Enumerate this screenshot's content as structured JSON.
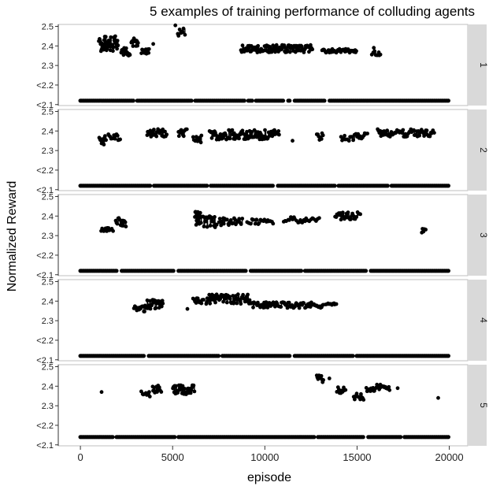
{
  "chart_data": {
    "type": "scatter",
    "title": "5 examples of training performance of colluding agents",
    "xlabel": "episode",
    "ylabel": "Normalized Reward",
    "xlim": [
      -1200,
      21000
    ],
    "ylim": [
      2.095,
      2.51
    ],
    "x_ticks": [
      0,
      5000,
      10000,
      15000,
      20000
    ],
    "y_ticks": [
      {
        "value": 2.1,
        "label": "<2.1"
      },
      {
        "value": 2.2,
        "label": "<2.2"
      },
      {
        "value": 2.3,
        "label": "2.3"
      },
      {
        "value": 2.4,
        "label": "2.4"
      },
      {
        "value": 2.5,
        "label": "2.5"
      }
    ],
    "grid": false,
    "legend": "none",
    "point_color": "#000000",
    "strip_color": "#d9d9d9",
    "panels": [
      {
        "label": "1",
        "baseline": {
          "value": 2.12,
          "ranges": [
            [
              0,
              20000
            ]
          ],
          "gaps": [
            [
              2900,
              3050
            ],
            [
              6050,
              6200
            ],
            [
              8900,
              9050
            ],
            [
              9350,
              9450
            ],
            [
              11050,
              11200
            ],
            [
              11400,
              11600
            ],
            [
              13300,
              13450
            ]
          ]
        },
        "clusters": [
          {
            "x": [
              1000,
              2050
            ],
            "center": 2.41,
            "spread": 0.04,
            "n": 46
          },
          {
            "x": [
              2200,
              2700
            ],
            "center": 2.37,
            "spread": 0.02,
            "n": 16
          },
          {
            "x": [
              2750,
              3150
            ],
            "center": 2.42,
            "spread": 0.025,
            "n": 14
          },
          {
            "x": [
              3300,
              3750
            ],
            "center": 2.37,
            "spread": 0.015,
            "n": 12
          },
          {
            "x": [
              5250,
              5700
            ],
            "center": 2.47,
            "spread": 0.02,
            "n": 8
          },
          {
            "x": [
              8700,
              12600
            ],
            "center": 2.385,
            "spread": 0.02,
            "n": 110
          },
          {
            "x": [
              13100,
              15000
            ],
            "center": 2.375,
            "spread": 0.01,
            "n": 45
          },
          {
            "x": [
              15800,
              16300
            ],
            "center": 2.37,
            "spread": 0.025,
            "n": 10
          }
        ],
        "singles": [
          [
            3950,
            2.41
          ],
          [
            5150,
            2.51
          ]
        ]
      },
      {
        "label": "2",
        "baseline": {
          "value": 2.12,
          "ranges": [
            [
              0,
              20000
            ]
          ],
          "gaps": [
            [
              3800,
              3950
            ],
            [
              6900,
              7050
            ],
            [
              10500,
              10650
            ],
            [
              13800,
              13950
            ],
            [
              16700,
              16850
            ]
          ]
        },
        "clusters": [
          {
            "x": [
              1000,
              1400
            ],
            "center": 2.35,
            "spread": 0.025,
            "n": 12
          },
          {
            "x": [
              1500,
              2200
            ],
            "center": 2.37,
            "spread": 0.02,
            "n": 14
          },
          {
            "x": [
              3600,
              4700
            ],
            "center": 2.39,
            "spread": 0.02,
            "n": 26
          },
          {
            "x": [
              5300,
              5800
            ],
            "center": 2.39,
            "spread": 0.02,
            "n": 12
          },
          {
            "x": [
              6100,
              6600
            ],
            "center": 2.36,
            "spread": 0.02,
            "n": 12
          },
          {
            "x": [
              7000,
              10800
            ],
            "center": 2.38,
            "spread": 0.025,
            "n": 100
          },
          {
            "x": [
              12800,
              13200
            ],
            "center": 2.37,
            "spread": 0.02,
            "n": 8
          },
          {
            "x": [
              14100,
              15600
            ],
            "center": 2.37,
            "spread": 0.02,
            "n": 24
          },
          {
            "x": [
              16100,
              19200
            ],
            "center": 2.39,
            "spread": 0.02,
            "n": 70
          }
        ],
        "singles": [
          [
            11500,
            2.35
          ]
        ]
      },
      {
        "label": "3",
        "baseline": {
          "value": 2.12,
          "ranges": [
            [
              0,
              20000
            ]
          ],
          "gaps": [
            [
              2000,
              2200
            ],
            [
              5100,
              5250
            ],
            [
              9000,
              9200
            ],
            [
              12000,
              12150
            ],
            [
              15500,
              15700
            ]
          ]
        },
        "clusters": [
          {
            "x": [
              1100,
              1800
            ],
            "center": 2.33,
            "spread": 0.01,
            "n": 14
          },
          {
            "x": [
              1900,
              2500
            ],
            "center": 2.37,
            "spread": 0.025,
            "n": 14
          },
          {
            "x": [
              6200,
              6600
            ],
            "center": 2.39,
            "spread": 0.035,
            "n": 18
          },
          {
            "x": [
              6650,
              7400
            ],
            "center": 2.37,
            "spread": 0.03,
            "n": 22
          },
          {
            "x": [
              7500,
              8800
            ],
            "center": 2.37,
            "spread": 0.02,
            "n": 24
          },
          {
            "x": [
              9000,
              10500
            ],
            "center": 2.37,
            "spread": 0.015,
            "n": 20
          },
          {
            "x": [
              11000,
              13000
            ],
            "center": 2.38,
            "spread": 0.015,
            "n": 26
          },
          {
            "x": [
              13800,
              15200
            ],
            "center": 2.4,
            "spread": 0.02,
            "n": 30
          },
          {
            "x": [
              18500,
              18750
            ],
            "center": 2.325,
            "spread": 0.01,
            "n": 6
          }
        ],
        "singles": []
      },
      {
        "label": "4",
        "baseline": {
          "value": 2.12,
          "ranges": [
            [
              0,
              20000
            ]
          ],
          "gaps": [
            [
              3500,
              3650
            ],
            [
              7500,
              7650
            ],
            [
              11400,
              11550
            ],
            [
              14800,
              14950
            ]
          ]
        },
        "clusters": [
          {
            "x": [
              2900,
              3500
            ],
            "center": 2.36,
            "spread": 0.015,
            "n": 16
          },
          {
            "x": [
              3500,
              4500
            ],
            "center": 2.385,
            "spread": 0.025,
            "n": 28
          },
          {
            "x": [
              6100,
              6700
            ],
            "center": 2.4,
            "spread": 0.015,
            "n": 12
          },
          {
            "x": [
              6800,
              9200
            ],
            "center": 2.41,
            "spread": 0.025,
            "n": 66
          },
          {
            "x": [
              9200,
              13200
            ],
            "center": 2.38,
            "spread": 0.015,
            "n": 80
          },
          {
            "x": [
              13300,
              13900
            ],
            "center": 2.385,
            "spread": 0.005,
            "n": 10
          }
        ],
        "singles": [
          [
            5800,
            2.36
          ]
        ]
      },
      {
        "label": "5",
        "baseline": {
          "value": 2.14,
          "ranges": [
            [
              0,
              20000
            ]
          ],
          "gaps": [
            [
              1800,
              1950
            ],
            [
              5150,
              5300
            ],
            [
              12700,
              12850
            ],
            [
              15400,
              15550
            ],
            [
              17400,
              17550
            ]
          ]
        },
        "clusters": [
          {
            "x": [
              3300,
              3800
            ],
            "center": 2.36,
            "spread": 0.015,
            "n": 10
          },
          {
            "x": [
              3900,
              4400
            ],
            "center": 2.385,
            "spread": 0.02,
            "n": 12
          },
          {
            "x": [
              5000,
              6200
            ],
            "center": 2.38,
            "spread": 0.025,
            "n": 36
          },
          {
            "x": [
              12800,
              13200
            ],
            "center": 2.44,
            "spread": 0.025,
            "n": 10
          },
          {
            "x": [
              13900,
              14400
            ],
            "center": 2.38,
            "spread": 0.015,
            "n": 10
          },
          {
            "x": [
              14800,
              15400
            ],
            "center": 2.35,
            "spread": 0.02,
            "n": 12
          },
          {
            "x": [
              15500,
              16800
            ],
            "center": 2.39,
            "spread": 0.02,
            "n": 30
          }
        ],
        "singles": [
          [
            1150,
            2.37
          ],
          [
            13500,
            2.44
          ],
          [
            17200,
            2.39
          ],
          [
            19400,
            2.34
          ]
        ]
      }
    ]
  }
}
